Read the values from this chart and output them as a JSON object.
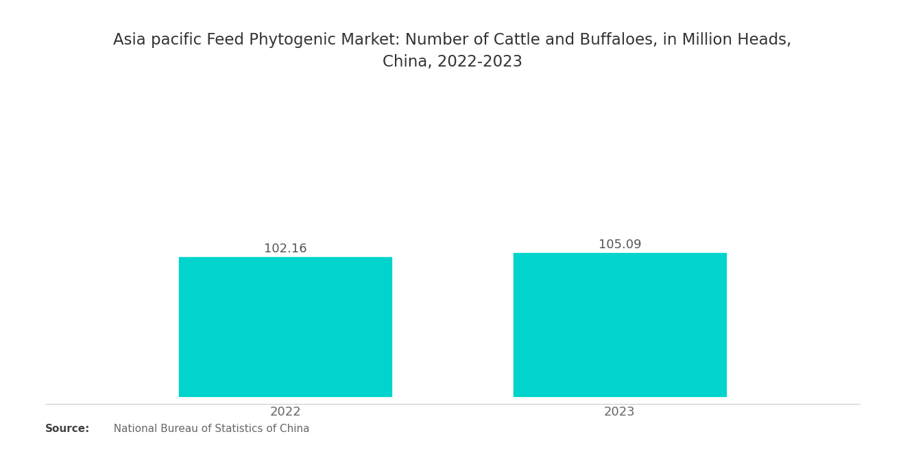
{
  "title": "Asia pacific Feed Phytogenic Market: Number of Cattle and Buffaloes, in Million Heads,\nChina, 2022-2023",
  "categories": [
    "2022",
    "2023"
  ],
  "values": [
    102.16,
    105.09
  ],
  "bar_color": "#00D4CC",
  "background_color": "#ffffff",
  "ylim": [
    0,
    160
  ],
  "bar_width": 0.28,
  "title_fontsize": 16.5,
  "label_fontsize": 13,
  "value_fontsize": 13,
  "source_bold": "Source:",
  "source_rest": "  National Bureau of Statistics of China",
  "x_positions": [
    0.28,
    0.72
  ]
}
